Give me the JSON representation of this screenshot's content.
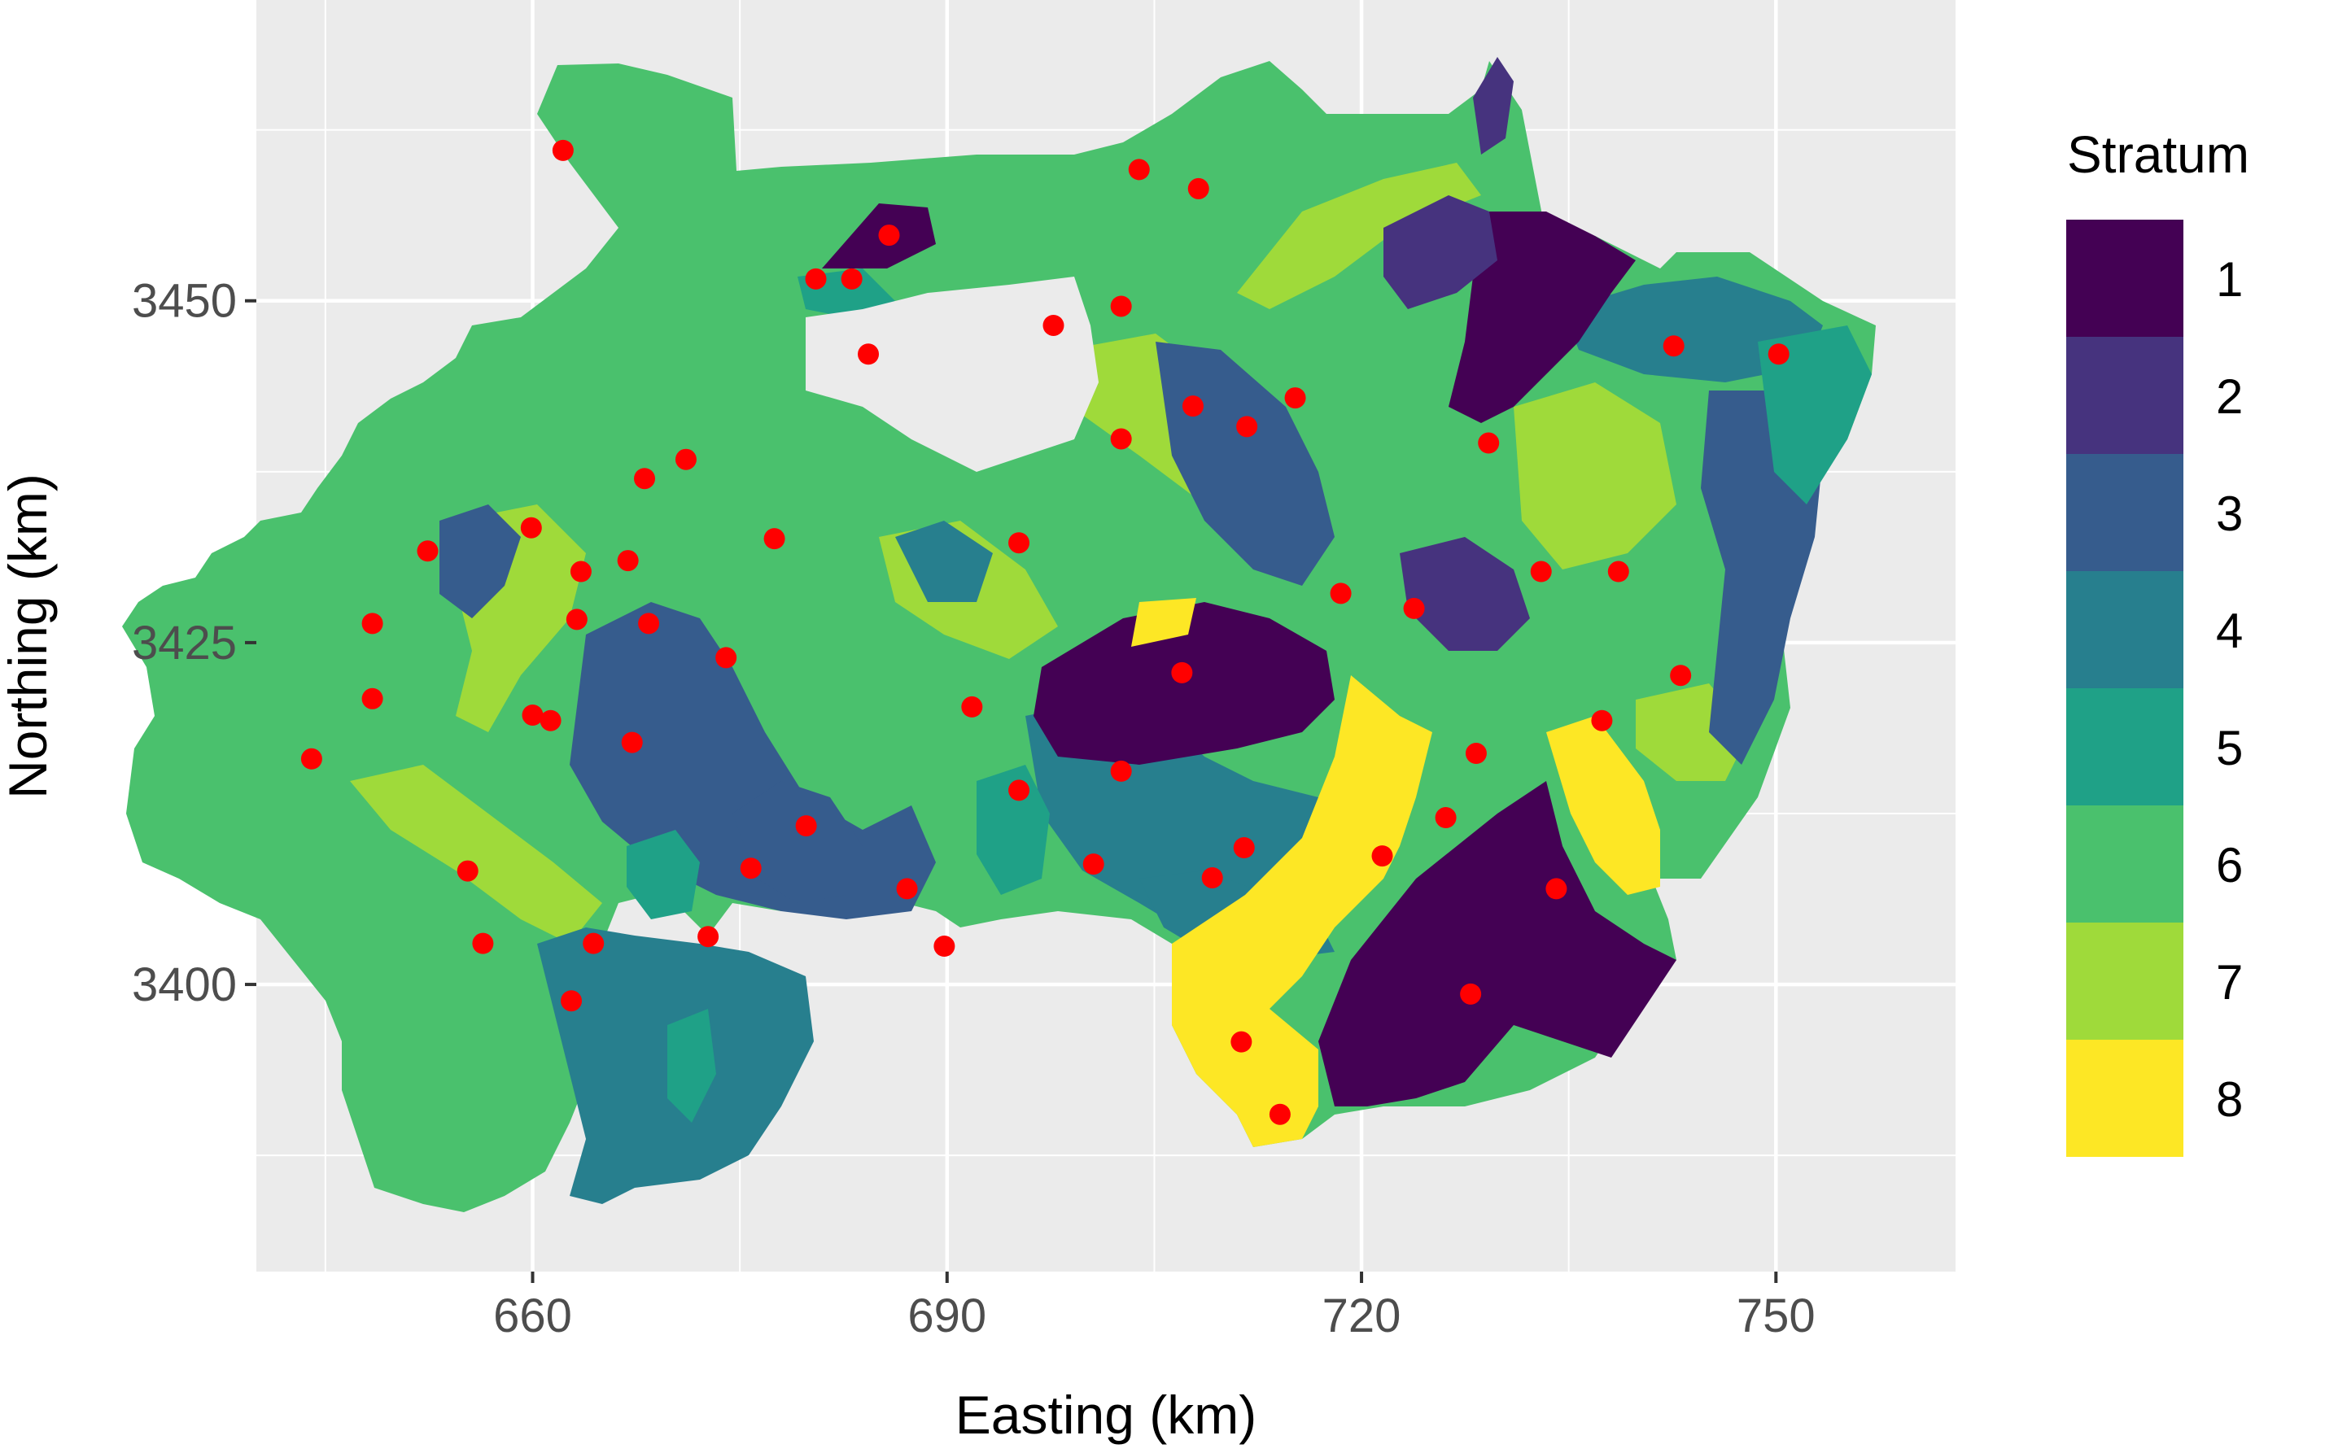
{
  "title": "",
  "x_axis": {
    "label": "Easting (km)",
    "range": [
      640,
      763
    ],
    "ticks": [
      {
        "value": 660,
        "label": "660"
      },
      {
        "value": 690,
        "label": "690"
      },
      {
        "value": 720,
        "label": "720"
      },
      {
        "value": 750,
        "label": "750"
      }
    ]
  },
  "y_axis": {
    "label": "Northing (km)",
    "range": [
      3379,
      3472
    ],
    "ticks": [
      {
        "value": 3400,
        "label": "3400"
      },
      {
        "value": 3425,
        "label": "3425"
      },
      {
        "value": 3450,
        "label": "3450"
      }
    ]
  },
  "legend": {
    "title": "Stratum",
    "placement": "right",
    "items": [
      {
        "label": "1",
        "color": "#440154"
      },
      {
        "label": "2",
        "color": "#46337E"
      },
      {
        "label": "3",
        "color": "#365C8D"
      },
      {
        "label": "4",
        "color": "#277F8E"
      },
      {
        "label": "5",
        "color": "#1FA187"
      },
      {
        "label": "6",
        "color": "#4AC16D"
      },
      {
        "label": "7",
        "color": "#9FDA3A"
      },
      {
        "label": "8",
        "color": "#FDE725"
      }
    ]
  },
  "colors": {
    "panel_background": "#EBEBEB",
    "grid": "#FFFFFF",
    "sample_point": "#FF0000"
  },
  "chart_data": {
    "type": "scatter",
    "description_free": true,
    "map_layer": "filled stratum regions (8 strata, viridis)",
    "series": [
      {
        "marker_color": "#FF0000",
        "points": [
          {
            "x": 662.2,
            "y": 3461.0
          },
          {
            "x": 703.9,
            "y": 3459.6
          },
          {
            "x": 708.2,
            "y": 3458.2
          },
          {
            "x": 685.8,
            "y": 3454.8
          },
          {
            "x": 680.5,
            "y": 3451.6
          },
          {
            "x": 683.1,
            "y": 3451.6
          },
          {
            "x": 702.6,
            "y": 3449.6
          },
          {
            "x": 697.7,
            "y": 3448.2
          },
          {
            "x": 684.3,
            "y": 3446.1
          },
          {
            "x": 742.6,
            "y": 3446.7
          },
          {
            "x": 750.2,
            "y": 3446.1
          },
          {
            "x": 715.2,
            "y": 3442.9
          },
          {
            "x": 707.8,
            "y": 3442.3
          },
          {
            "x": 711.7,
            "y": 3440.8
          },
          {
            "x": 702.6,
            "y": 3439.9
          },
          {
            "x": 729.2,
            "y": 3439.6
          },
          {
            "x": 671.1,
            "y": 3438.4
          },
          {
            "x": 668.1,
            "y": 3437.0
          },
          {
            "x": 659.9,
            "y": 3433.4
          },
          {
            "x": 677.5,
            "y": 3432.6
          },
          {
            "x": 695.2,
            "y": 3432.3
          },
          {
            "x": 652.4,
            "y": 3431.7
          },
          {
            "x": 666.9,
            "y": 3431.0
          },
          {
            "x": 663.5,
            "y": 3430.2
          },
          {
            "x": 733.0,
            "y": 3430.2
          },
          {
            "x": 738.6,
            "y": 3430.2
          },
          {
            "x": 718.5,
            "y": 3428.6
          },
          {
            "x": 723.8,
            "y": 3427.5
          },
          {
            "x": 663.2,
            "y": 3426.7
          },
          {
            "x": 668.4,
            "y": 3426.4
          },
          {
            "x": 648.4,
            "y": 3426.4
          },
          {
            "x": 674.0,
            "y": 3423.9
          },
          {
            "x": 707.0,
            "y": 3422.8
          },
          {
            "x": 743.1,
            "y": 3422.6
          },
          {
            "x": 648.4,
            "y": 3420.9
          },
          {
            "x": 691.8,
            "y": 3420.3
          },
          {
            "x": 660.0,
            "y": 3419.7
          },
          {
            "x": 661.3,
            "y": 3419.3
          },
          {
            "x": 737.4,
            "y": 3419.3
          },
          {
            "x": 667.2,
            "y": 3417.7
          },
          {
            "x": 644.0,
            "y": 3416.5
          },
          {
            "x": 728.3,
            "y": 3416.9
          },
          {
            "x": 702.6,
            "y": 3415.6
          },
          {
            "x": 695.2,
            "y": 3414.2
          },
          {
            "x": 726.1,
            "y": 3412.2
          },
          {
            "x": 679.8,
            "y": 3411.6
          },
          {
            "x": 711.5,
            "y": 3410.0
          },
          {
            "x": 721.5,
            "y": 3409.4
          },
          {
            "x": 700.6,
            "y": 3408.8
          },
          {
            "x": 675.8,
            "y": 3408.5
          },
          {
            "x": 655.3,
            "y": 3408.3
          },
          {
            "x": 709.2,
            "y": 3407.8
          },
          {
            "x": 687.1,
            "y": 3407.0
          },
          {
            "x": 734.1,
            "y": 3407.0
          },
          {
            "x": 672.7,
            "y": 3403.5
          },
          {
            "x": 656.4,
            "y": 3403.0
          },
          {
            "x": 664.4,
            "y": 3403.0
          },
          {
            "x": 689.8,
            "y": 3402.8
          },
          {
            "x": 662.8,
            "y": 3398.8
          },
          {
            "x": 727.9,
            "y": 3399.3
          },
          {
            "x": 711.3,
            "y": 3395.8
          },
          {
            "x": 714.1,
            "y": 3390.5
          }
        ]
      }
    ]
  }
}
